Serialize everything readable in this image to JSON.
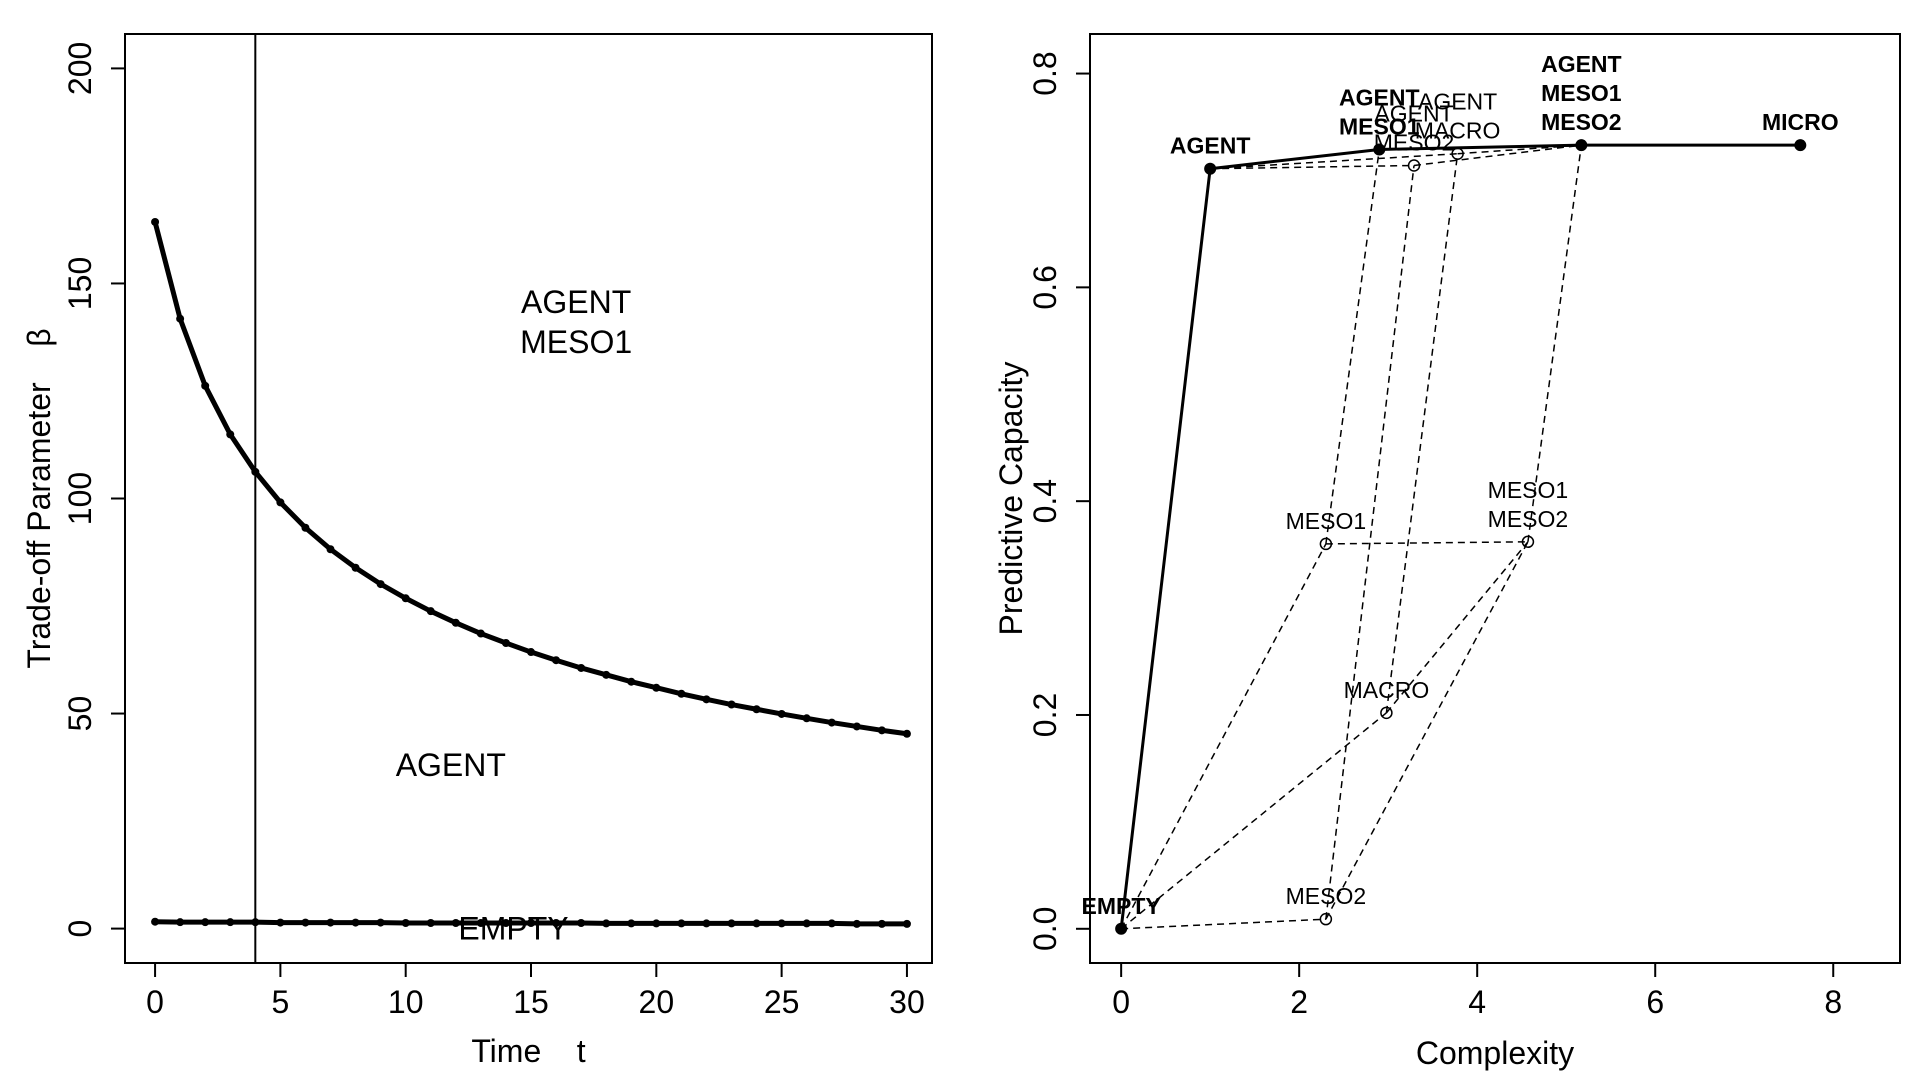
{
  "chart_data": [
    {
      "type": "line",
      "xlabel": "Time    t",
      "ylabel": "Trade-off Parameter    β",
      "xlim": [
        -1.2,
        31
      ],
      "ylim": [
        -8,
        208
      ],
      "xticks": [
        0,
        5,
        10,
        15,
        20,
        25,
        30
      ],
      "yticks": [
        0,
        50,
        100,
        150,
        200
      ],
      "grid": false,
      "vline_x": 4,
      "series": [
        {
          "x": [
            0,
            1,
            2,
            3,
            4,
            5,
            6,
            7,
            8,
            9,
            10,
            11,
            12,
            13,
            14,
            15,
            16,
            17,
            18,
            19,
            20,
            21,
            22,
            23,
            24,
            25,
            26,
            27,
            28,
            29,
            30
          ],
          "values": [
            164.3,
            141.8,
            126.2,
            114.9,
            106.2,
            99.1,
            93.2,
            88.2,
            83.9,
            80.1,
            76.8,
            73.8,
            71.1,
            68.6,
            66.4,
            64.3,
            62.4,
            60.6,
            59.0,
            57.4,
            56.0,
            54.6,
            53.3,
            52.1,
            51.0,
            49.9,
            48.9,
            47.9,
            47.0,
            46.1,
            45.3
          ]
        },
        {
          "x": [
            0,
            1,
            2,
            3,
            4,
            5,
            6,
            7,
            8,
            9,
            10,
            11,
            12,
            13,
            14,
            15,
            16,
            17,
            18,
            19,
            20,
            21,
            22,
            23,
            24,
            25,
            26,
            27,
            28,
            29,
            30
          ],
          "values": [
            1.6,
            1.5,
            1.5,
            1.5,
            1.5,
            1.4,
            1.4,
            1.4,
            1.4,
            1.4,
            1.3,
            1.3,
            1.3,
            1.3,
            1.3,
            1.3,
            1.3,
            1.3,
            1.2,
            1.2,
            1.2,
            1.2,
            1.2,
            1.2,
            1.2,
            1.2,
            1.2,
            1.2,
            1.1,
            1.1,
            1.1
          ]
        }
      ],
      "annotations": [
        {
          "lines": [
            "AGENT",
            "MESO1"
          ],
          "x": 16.8,
          "y": 141
        },
        {
          "lines": [
            "AGENT"
          ],
          "x": 11.8,
          "y": 38
        },
        {
          "lines": [
            "EMPTY"
          ],
          "x": 14.3,
          "y": 0
        }
      ]
    },
    {
      "type": "scatter",
      "xlabel": "Complexity",
      "ylabel": "Predictive Capacity",
      "xlim": [
        -0.35,
        8.75
      ],
      "ylim": [
        -0.032,
        0.837
      ],
      "xticks": [
        0,
        2,
        4,
        6,
        8
      ],
      "yticks": [
        "0.0",
        "0.2",
        "0.4",
        "0.6",
        "0.8"
      ],
      "grid": false,
      "frontier": [
        {
          "lines": [
            "EMPTY"
          ],
          "x": 0,
          "y": 0
        },
        {
          "lines": [
            "AGENT"
          ],
          "x": 1.0,
          "y": 0.711
        },
        {
          "lines": [
            "AGENT",
            "MESO1"
          ],
          "x": 2.9,
          "y": 0.729
        },
        {
          "lines": [
            "AGENT",
            "MESO1",
            "MESO2"
          ],
          "x": 5.17,
          "y": 0.733
        },
        {
          "lines": [
            "MICRO"
          ],
          "x": 7.63,
          "y": 0.733
        }
      ],
      "other_models": [
        {
          "lines": [
            "MESO2"
          ],
          "x": 2.3,
          "y": 0.009
        },
        {
          "lines": [
            "MACRO"
          ],
          "x": 2.98,
          "y": 0.202
        },
        {
          "lines": [
            "MESO1"
          ],
          "x": 2.3,
          "y": 0.36
        },
        {
          "lines": [
            "MESO1",
            "MESO2"
          ],
          "x": 4.57,
          "y": 0.362
        },
        {
          "lines": [
            "AGENT",
            "MESO2"
          ],
          "x": 3.29,
          "y": 0.714
        },
        {
          "lines": [
            "AGENT",
            "MACRO"
          ],
          "x": 3.78,
          "y": 0.725
        }
      ],
      "lattice_edges": [
        [
          "EMPTY",
          "MESO2"
        ],
        [
          "EMPTY",
          "MACRO"
        ],
        [
          "EMPTY",
          "MESO1"
        ],
        [
          "EMPTY",
          "AGENT"
        ],
        [
          "MESO1",
          "MESO1 MESO2"
        ],
        [
          "MESO2",
          "MESO1 MESO2"
        ],
        [
          "MESO1",
          "AGENT MESO1"
        ],
        [
          "MESO2",
          "AGENT MESO2"
        ],
        [
          "MACRO",
          "AGENT MACRO"
        ],
        [
          "MACRO",
          "MESO1 MESO2"
        ],
        [
          "AGENT",
          "AGENT MESO1"
        ],
        [
          "AGENT",
          "AGENT MESO2"
        ],
        [
          "AGENT",
          "AGENT MACRO"
        ],
        [
          "AGENT MESO1",
          "AGENT MESO1 MESO2"
        ],
        [
          "AGENT MESO2",
          "AGENT MESO1 MESO2"
        ],
        [
          "AGENT MACRO",
          "AGENT MESO1 MESO2"
        ],
        [
          "MESO1 MESO2",
          "AGENT MESO1 MESO2"
        ]
      ]
    }
  ]
}
